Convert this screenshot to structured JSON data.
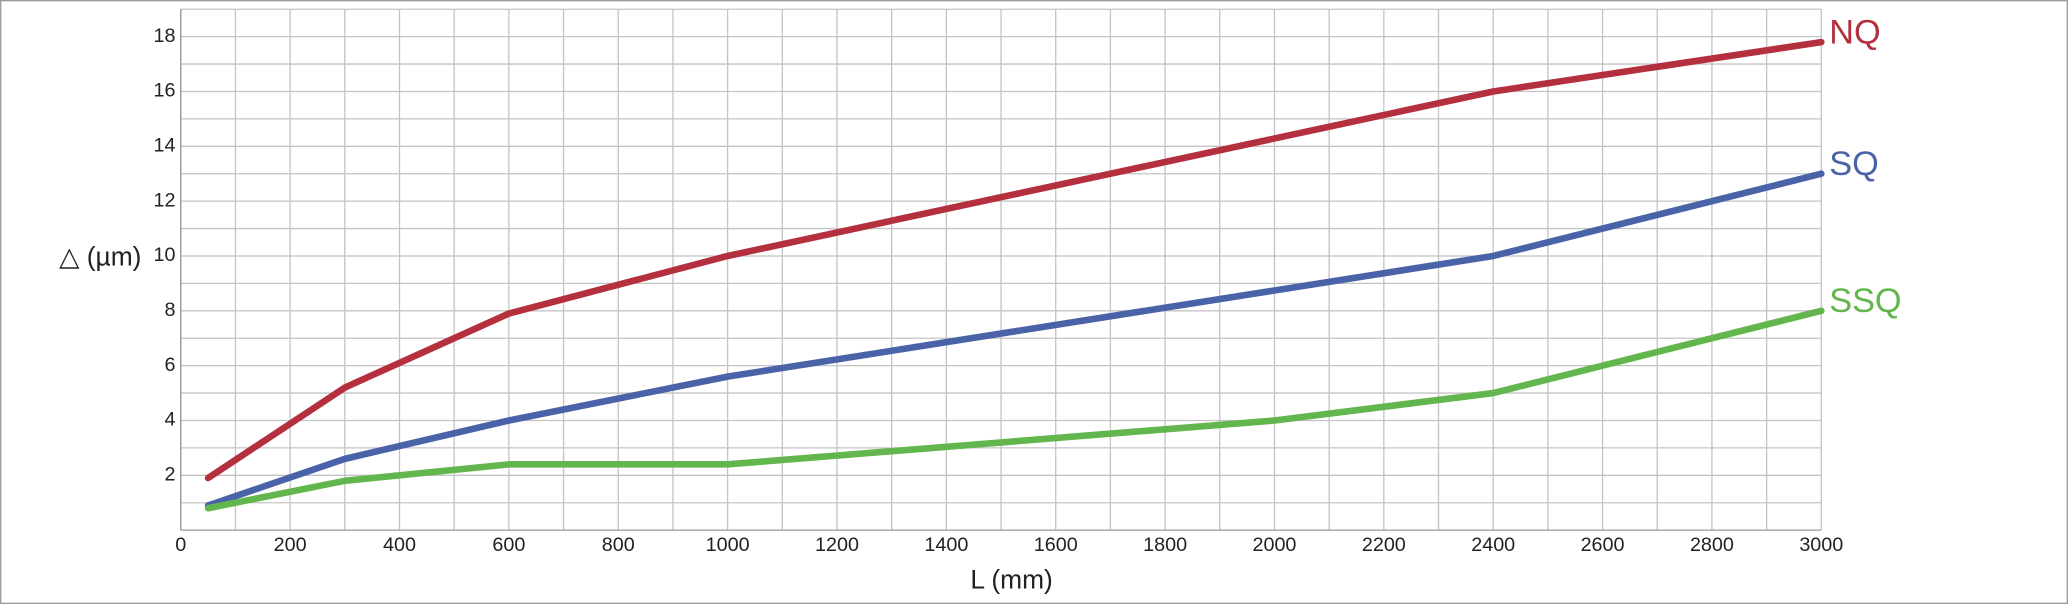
{
  "chart_data": {
    "type": "line",
    "x_label": "L (mm)",
    "y_label": "△ (µm)",
    "xlim": [
      0,
      3000
    ],
    "ylim": [
      0,
      19
    ],
    "xticks": [
      0,
      200,
      400,
      600,
      800,
      1000,
      1200,
      1400,
      1600,
      1800,
      2000,
      2200,
      2400,
      2600,
      2800,
      3000
    ],
    "yticks": [
      2,
      4,
      6,
      8,
      10,
      12,
      14,
      16,
      18
    ],
    "xminor": [
      100,
      300,
      500,
      700,
      900,
      1100,
      1300,
      1500,
      1700,
      1900,
      2100,
      2300,
      2500,
      2700,
      2900
    ],
    "yminor": [
      1,
      3,
      5,
      7,
      9,
      11,
      13,
      15,
      17,
      19
    ],
    "grid": true,
    "series": [
      {
        "name": "NQ",
        "color": "#b5303f",
        "x": [
          50,
          300,
          600,
          1000,
          2400,
          3000
        ],
        "values": [
          1.9,
          5.2,
          7.9,
          10,
          16,
          17.8
        ]
      },
      {
        "name": "SQ",
        "color": "#4a62a8",
        "x": [
          50,
          300,
          600,
          1000,
          2400,
          3000
        ],
        "values": [
          0.9,
          2.6,
          4,
          5.6,
          10,
          13
        ]
      },
      {
        "name": "SSQ",
        "color": "#62b64d",
        "x": [
          50,
          300,
          600,
          1000,
          2000,
          2400,
          3000
        ],
        "values": [
          0.8,
          1.8,
          2.4,
          2.4,
          4,
          5,
          8
        ]
      }
    ]
  }
}
